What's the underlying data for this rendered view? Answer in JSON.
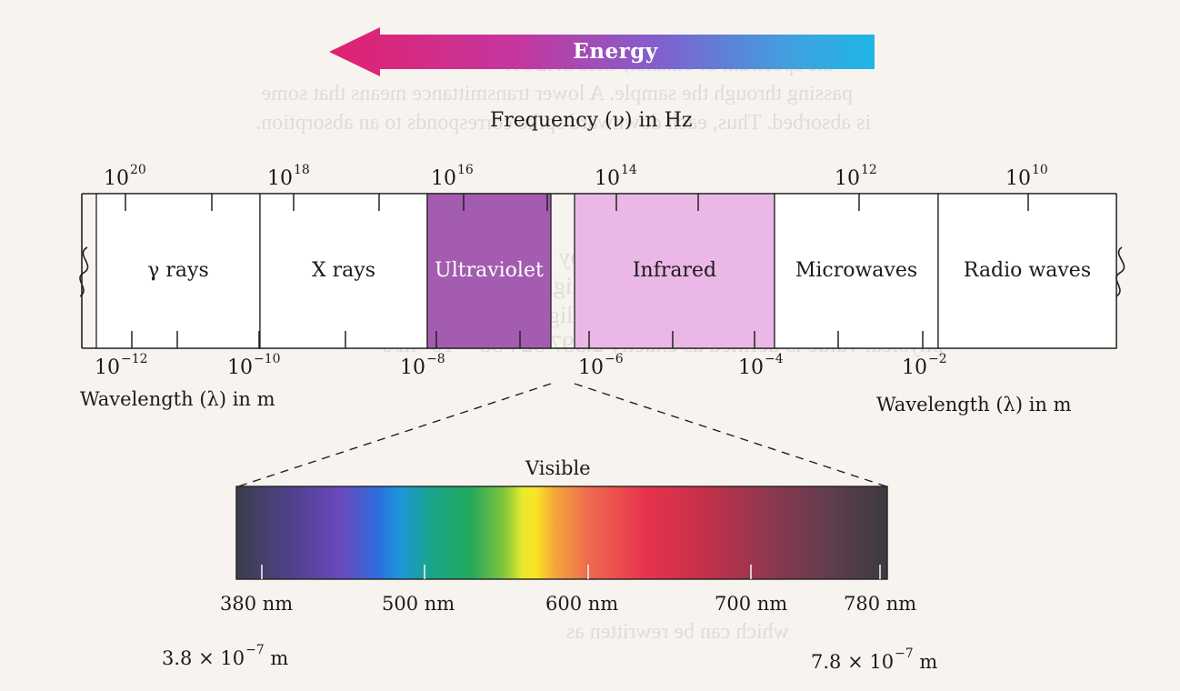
{
  "energy_arrow": {
    "label": "Energy"
  },
  "frequency_axis": {
    "title": "Frequency (ν) in Hz",
    "ticks": [
      {
        "base": "10",
        "exp": "20"
      },
      {
        "base": "10",
        "exp": "18"
      },
      {
        "base": "10",
        "exp": "16"
      },
      {
        "base": "10",
        "exp": "14"
      },
      {
        "base": "10",
        "exp": "12"
      },
      {
        "base": "10",
        "exp": "10"
      }
    ]
  },
  "regions": [
    {
      "label": "γ rays",
      "fill": "#ffffff"
    },
    {
      "label": "X rays",
      "fill": "#ffffff"
    },
    {
      "label": "Ultraviolet",
      "fill": "#a35cb0"
    },
    {
      "label": "Infrared",
      "fill": "#ebb7e6"
    },
    {
      "label": "Microwaves",
      "fill": "#ffffff"
    },
    {
      "label": "Radio waves",
      "fill": "#ffffff"
    }
  ],
  "wavelength_axis": {
    "title_left": "Wavelength (λ) in m",
    "title_right": "Wavelength (λ) in m",
    "ticks": [
      {
        "base": "10",
        "exp": "−12"
      },
      {
        "base": "10",
        "exp": "−10"
      },
      {
        "base": "10",
        "exp": "−8"
      },
      {
        "base": "10",
        "exp": "−6"
      },
      {
        "base": "10",
        "exp": "−4"
      },
      {
        "base": "10",
        "exp": "−2"
      }
    ]
  },
  "visible": {
    "title": "Visible",
    "ticks": [
      "380 nm",
      "500 nm",
      "600 nm",
      "700 nm",
      "780 nm"
    ],
    "low_m": {
      "mantissa": "3.8 × 10",
      "exp": "−7",
      "unit": " m"
    },
    "high_m": {
      "mantissa": "7.8 × 10",
      "exp": "−7",
      "unit": " m"
    }
  }
}
